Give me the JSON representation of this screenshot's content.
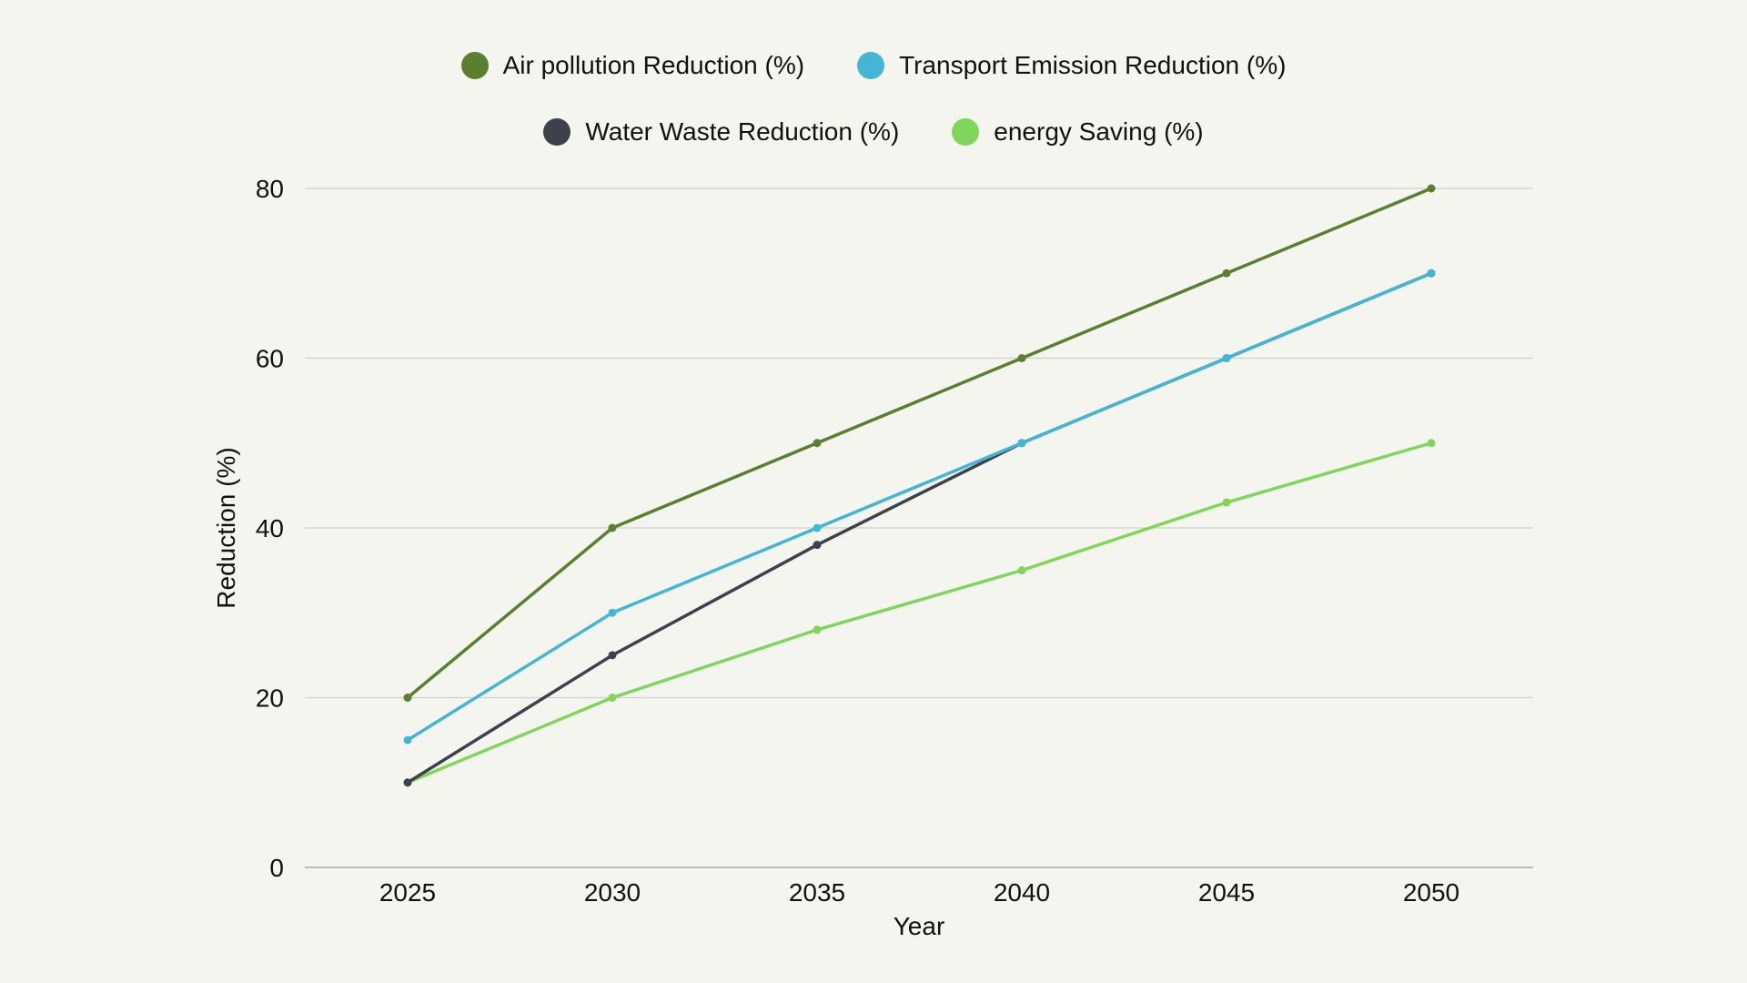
{
  "chart_data": {
    "type": "line",
    "xlabel": "Year",
    "ylabel": "Reduction (%)",
    "x": [
      2025,
      2030,
      2035,
      2040,
      2045,
      2050
    ],
    "x_tick_labels": [
      "2025",
      "2030",
      "2035",
      "2040",
      "2045",
      "2050"
    ],
    "y_ticks": [
      0,
      20,
      40,
      60,
      80
    ],
    "y_tick_labels": [
      "0",
      "20",
      "40",
      "60",
      "80"
    ],
    "ylim": [
      0,
      80
    ],
    "grid": true,
    "legend_position": "top-center",
    "series": [
      {
        "name": "Air pollution Reduction (%)",
        "color": "#5a7f2e",
        "values": [
          20,
          40,
          50,
          60,
          70,
          80
        ]
      },
      {
        "name": "Transport Emission Reduction (%)",
        "color": "#45b5d6",
        "values": [
          15,
          30,
          40,
          50,
          60,
          70
        ]
      },
      {
        "name": "Water Waste Reduction (%)",
        "color": "#3c414b",
        "values": [
          10,
          25,
          38,
          50,
          60,
          70
        ]
      },
      {
        "name": "energy Saving (%)",
        "color": "#7fd65a",
        "values": [
          10,
          20,
          28,
          35,
          43,
          50
        ]
      }
    ]
  }
}
